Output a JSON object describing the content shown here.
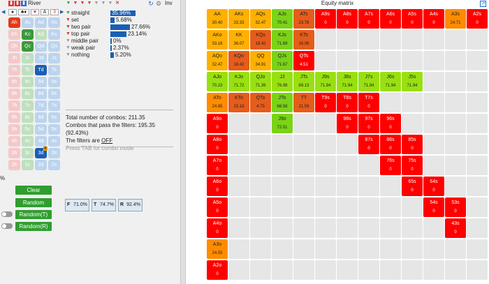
{
  "toolbar": {
    "street_label": "River",
    "inv_label": "Inv"
  },
  "suits": [
    "♠",
    "♣♦",
    "♥",
    "A",
    "3"
  ],
  "cards": [
    {
      "label": "Ah",
      "style": "c-sel-red"
    },
    {
      "label": "Ac",
      "style": "c-blue"
    },
    {
      "label": "Ad",
      "style": "c-blue"
    },
    {
      "label": "As",
      "style": "c-blue"
    },
    {
      "label": "Kh",
      "style": "c-red"
    },
    {
      "label": "Kc",
      "style": "c-sel-green"
    },
    {
      "label": "Kd",
      "style": "c-green"
    },
    {
      "label": "Ks",
      "style": "c-blue"
    },
    {
      "label": "Qh",
      "style": "c-red"
    },
    {
      "label": "Qc",
      "style": "c-sel-green"
    },
    {
      "label": "Qd",
      "style": "c-blue"
    },
    {
      "label": "Qs",
      "style": "c-blue"
    },
    {
      "label": "Jh",
      "style": "c-red"
    },
    {
      "label": "Jc",
      "style": "c-green"
    },
    {
      "label": "Jd",
      "style": "c-blue"
    },
    {
      "label": "Js",
      "style": "c-blue"
    },
    {
      "label": "Th",
      "style": "c-red"
    },
    {
      "label": "Tc",
      "style": "c-green"
    },
    {
      "label": "Td",
      "style": "c-sel-blue"
    },
    {
      "label": "Ts",
      "style": "c-blue"
    },
    {
      "label": "9h",
      "style": "c-red"
    },
    {
      "label": "9c",
      "style": "c-green"
    },
    {
      "label": "9d",
      "style": "c-blue"
    },
    {
      "label": "9s",
      "style": "c-blue"
    },
    {
      "label": "8h",
      "style": "c-red"
    },
    {
      "label": "8c",
      "style": "c-green"
    },
    {
      "label": "8d",
      "style": "c-blue"
    },
    {
      "label": "8s",
      "style": "c-blue"
    },
    {
      "label": "7h",
      "style": "c-red"
    },
    {
      "label": "7c",
      "style": "c-green"
    },
    {
      "label": "7d",
      "style": "c-blue"
    },
    {
      "label": "7s",
      "style": "c-blue"
    },
    {
      "label": "6h",
      "style": "c-red"
    },
    {
      "label": "6c",
      "style": "c-green"
    },
    {
      "label": "6d",
      "style": "c-blue"
    },
    {
      "label": "6s",
      "style": "c-blue"
    },
    {
      "label": "5h",
      "style": "c-red"
    },
    {
      "label": "5c",
      "style": "c-green"
    },
    {
      "label": "5d",
      "style": "c-blue"
    },
    {
      "label": "5s",
      "style": "c-blue"
    },
    {
      "label": "4h",
      "style": "c-red"
    },
    {
      "label": "4c",
      "style": "c-green"
    },
    {
      "label": "4d",
      "style": "c-blue"
    },
    {
      "label": "4s",
      "style": "c-blue"
    },
    {
      "label": "3h",
      "style": "c-red"
    },
    {
      "label": "3c",
      "style": "c-green"
    },
    {
      "label": "3d",
      "style": "c-sel-blue",
      "badge": "B"
    },
    {
      "label": "3s",
      "style": "c-blue"
    },
    {
      "label": "2h",
      "style": "c-red"
    },
    {
      "label": "2c",
      "style": "c-green"
    },
    {
      "label": "2d",
      "style": "c-blue"
    },
    {
      "label": "2s",
      "style": "c-blue"
    }
  ],
  "filters": [
    {
      "label": "straight",
      "value": "35.96%",
      "fraction": 0.3596,
      "icon": "green",
      "highlight": true
    },
    {
      "label": "set",
      "value": "5.68%",
      "fraction": 0.0568,
      "icon": "red"
    },
    {
      "label": "two pair",
      "value": "27.66%",
      "fraction": 0.2766,
      "icon": "red"
    },
    {
      "label": "top pair",
      "value": "23.14%",
      "fraction": 0.2314,
      "icon": "red"
    },
    {
      "label": "middle pair",
      "value": "0%",
      "fraction": 0,
      "icon": "grey"
    },
    {
      "label": "weak pair",
      "value": "2.37%",
      "fraction": 0.0237,
      "icon": "grey"
    },
    {
      "label": "nothing",
      "value": "5.20%",
      "fraction": 0.052,
      "icon": "grey"
    }
  ],
  "stats": {
    "total": "Total number of combos: 211.35",
    "pass": "Combos that pass the filters: 195.35 (92.43%)",
    "filters_prefix": "The filters are ",
    "filters_state": "OFF",
    "hint": "Press TAB for combo mode"
  },
  "buttons": {
    "clear": "Clear",
    "random": "Random",
    "random_t": "Random(T)",
    "random_r": "Random(R)"
  },
  "street_pcts": [
    {
      "letter": "F",
      "value": "71.0%"
    },
    {
      "letter": "T",
      "value": "74.7%"
    },
    {
      "letter": "R",
      "value": "92.4%"
    }
  ],
  "edge_label": "%",
  "matrix": {
    "title": "Equity matrix",
    "rows": [
      [
        [
          "AA",
          "30.40",
          "yellow"
        ],
        [
          "AKs",
          "33.33",
          "yellow"
        ],
        [
          "AQs",
          "32.47",
          "yellow"
        ],
        [
          "AJs",
          "70.41",
          "green"
        ],
        [
          "ATs",
          "23.78",
          "dorange"
        ],
        [
          "A9s",
          "0",
          "red"
        ],
        [
          "A8s",
          "0",
          "red"
        ],
        [
          "A7s",
          "0",
          "red"
        ],
        [
          "A6s",
          "0",
          "red"
        ],
        [
          "A5s",
          "0",
          "red"
        ],
        [
          "A4s",
          "0",
          "red"
        ],
        [
          "A3s",
          "24.71",
          "orange"
        ],
        [
          "A2s",
          "0",
          "red"
        ]
      ],
      [
        [
          "AKo",
          "33.16",
          "yellow"
        ],
        [
          "KK",
          "36.07",
          "yellow"
        ],
        [
          "KQs",
          "18.42",
          "dorange"
        ],
        [
          "KJs",
          "71.69",
          "green"
        ],
        [
          "KTs",
          "16.08",
          "dorange"
        ],
        null,
        null,
        null,
        null,
        null,
        null,
        null,
        null
      ],
      [
        [
          "AQo",
          "32.47",
          "yellow"
        ],
        [
          "KQo",
          "18.42",
          "dorange"
        ],
        [
          "QQ",
          "34.91",
          "yellow"
        ],
        [
          "QJs",
          "71.67",
          "green"
        ],
        [
          "QTs",
          "4.51",
          "red"
        ],
        null,
        null,
        null,
        null,
        null,
        null,
        null,
        null
      ],
      [
        [
          "AJo",
          "70.23",
          "lime"
        ],
        [
          "KJo",
          "71.72",
          "lime"
        ],
        [
          "QJo",
          "71.39",
          "lime"
        ],
        [
          "JJ",
          "76.98",
          "lime"
        ],
        [
          "JTs",
          "69.13",
          "lime"
        ],
        [
          "J9s",
          "71.94",
          "lime"
        ],
        [
          "J8s",
          "71.94",
          "lime"
        ],
        [
          "J7s",
          "71.94",
          "lime"
        ],
        [
          "J6s",
          "71.94",
          "lime"
        ],
        [
          "J5s",
          "71.94",
          "lime"
        ],
        null,
        null,
        null
      ],
      [
        [
          "ATo",
          "24.85",
          "orange"
        ],
        [
          "KTo",
          "15.18",
          "dorange"
        ],
        [
          "QTo",
          "4.75",
          "dorange"
        ],
        [
          "JTo",
          "68.58",
          "green"
        ],
        [
          "TT",
          "21.59",
          "dorange"
        ],
        [
          "T9s",
          "0",
          "red"
        ],
        [
          "T8s",
          "0",
          "red"
        ],
        [
          "T7s",
          "0",
          "red"
        ],
        null,
        null,
        null,
        null,
        null
      ],
      [
        [
          "A9o",
          "0",
          "red"
        ],
        null,
        null,
        [
          "J9o",
          "72.01",
          "green"
        ],
        null,
        null,
        [
          "98s",
          "0",
          "red"
        ],
        [
          "97s",
          "0",
          "red"
        ],
        [
          "96s",
          "0",
          "red"
        ],
        null,
        null,
        null,
        null
      ],
      [
        [
          "A8o",
          "0",
          "red"
        ],
        null,
        null,
        null,
        null,
        null,
        null,
        [
          "87s",
          "0",
          "red"
        ],
        [
          "86s",
          "0",
          "red"
        ],
        [
          "85s",
          "0",
          "red"
        ],
        null,
        null,
        null
      ],
      [
        [
          "A7o",
          "0",
          "red"
        ],
        null,
        null,
        null,
        null,
        null,
        null,
        null,
        [
          "76s",
          "0",
          "red"
        ],
        [
          "75s",
          "0",
          "red"
        ],
        null,
        null,
        null
      ],
      [
        [
          "A6o",
          "0",
          "red"
        ],
        null,
        null,
        null,
        null,
        null,
        null,
        null,
        null,
        [
          "65s",
          "0",
          "red"
        ],
        [
          "64s",
          "0",
          "red"
        ],
        null,
        null
      ],
      [
        [
          "A5o",
          "0",
          "red"
        ],
        null,
        null,
        null,
        null,
        null,
        null,
        null,
        null,
        null,
        [
          "54s",
          "0",
          "red"
        ],
        [
          "53s",
          "0",
          "red"
        ],
        null
      ],
      [
        [
          "A4o",
          "0",
          "red"
        ],
        null,
        null,
        null,
        null,
        null,
        null,
        null,
        null,
        null,
        null,
        [
          "43s",
          "0",
          "red"
        ],
        null
      ],
      [
        [
          "A3o",
          "24.55",
          "orange"
        ],
        null,
        null,
        null,
        null,
        null,
        null,
        null,
        null,
        null,
        null,
        null,
        null
      ],
      [
        [
          "A2o",
          "0",
          "red"
        ],
        null,
        null,
        null,
        null,
        null,
        null,
        null,
        null,
        null,
        null,
        null,
        null
      ]
    ]
  }
}
